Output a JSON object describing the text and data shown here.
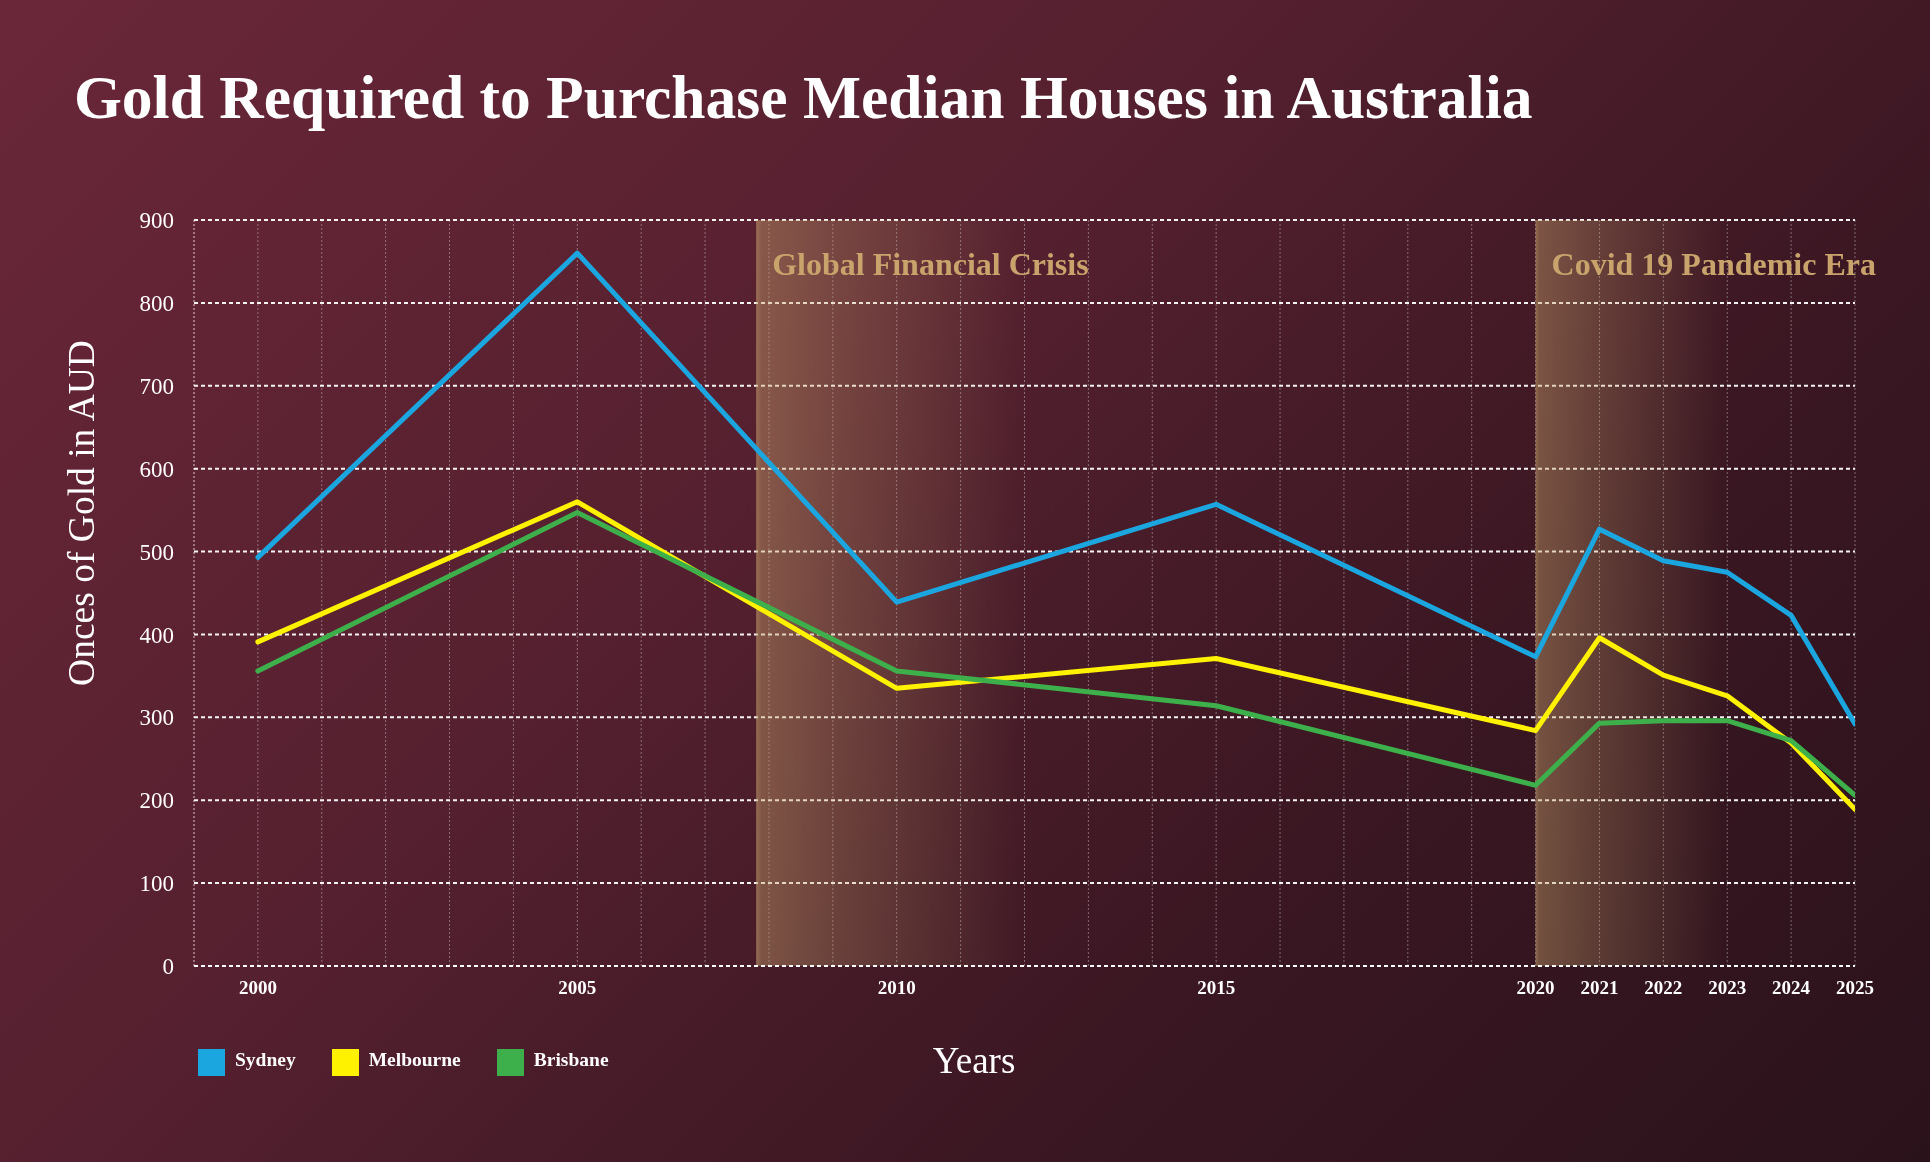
{
  "chart_data": {
    "type": "line",
    "title": "Gold Required to Purchase Median Houses in Australia",
    "xlabel": "Years",
    "ylabel": "Onces of Gold in AUD",
    "x": [
      2000,
      2005,
      2010,
      2015,
      2020,
      2021,
      2022,
      2023,
      2024,
      2025
    ],
    "series": [
      {
        "name": "Sydney",
        "color": "#1ba6df",
        "values": [
          493,
          860,
          439,
          557,
          373,
          527,
          489,
          475,
          423,
          292
        ]
      },
      {
        "name": "Melbourne",
        "color": "#fef200",
        "values": [
          391,
          560,
          335,
          371,
          284,
          396,
          351,
          326,
          269,
          189
        ]
      },
      {
        "name": "Brisbane",
        "color": "#3db04b",
        "values": [
          356,
          547,
          356,
          314,
          218,
          293,
          296,
          296,
          272,
          206
        ]
      }
    ],
    "xlim": [
      1999,
      2025
    ],
    "xticks": [
      2000,
      {
        "value": 2001,
        "label": null
      },
      {
        "value": 2002,
        "label": null
      },
      {
        "value": 2003,
        "label": null
      },
      {
        "value": 2004,
        "label": null
      },
      2005,
      {
        "value": 2006,
        "label": null
      },
      {
        "value": 2007,
        "label": null
      },
      {
        "value": 2008,
        "label": null
      },
      {
        "value": 2009,
        "label": null
      },
      2010,
      {
        "value": 2011,
        "label": null
      },
      {
        "value": 2012,
        "label": null
      },
      {
        "value": 2013,
        "label": null
      },
      {
        "value": 2014,
        "label": null
      },
      2015,
      {
        "value": 2016,
        "label": null
      },
      {
        "value": 2017,
        "label": null
      },
      {
        "value": 2018,
        "label": null
      },
      {
        "value": 2019,
        "label": null
      },
      2020,
      2021,
      2022,
      2023,
      2024,
      2025
    ],
    "ylim": [
      0,
      900
    ],
    "yticks": [
      0,
      100,
      200,
      300,
      400,
      500,
      600,
      700,
      800,
      900
    ],
    "bands": [
      {
        "axis": "x",
        "from": 2007.8,
        "to": 2012,
        "label": "Global Financial Crisis",
        "color": "#c8a36c"
      },
      {
        "axis": "x",
        "from": 2020,
        "to": 2023,
        "label": "Covid 19 Pandemic Era",
        "color": "#c8a36c"
      }
    ],
    "grid": true,
    "legend": "bottom left",
    "marker": "none"
  }
}
